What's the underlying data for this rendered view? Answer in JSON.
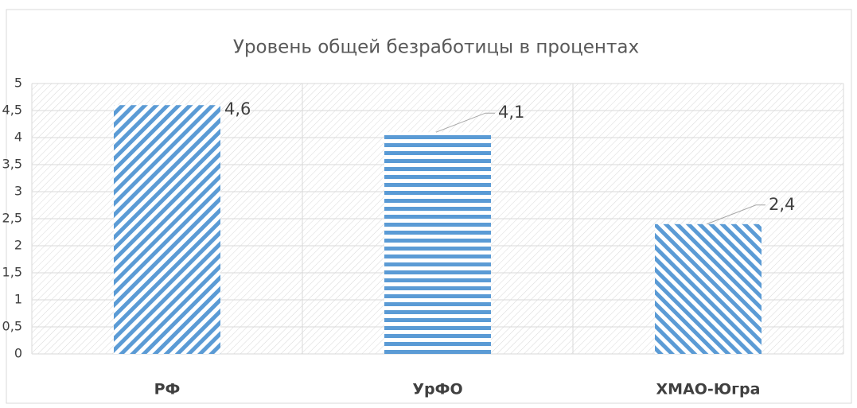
{
  "chart_data": {
    "type": "bar",
    "title": "Уровень общей безработицы   в процентах",
    "categories": [
      "РФ",
      "УрФО",
      "ХМАО-Югра"
    ],
    "values": [
      4.6,
      4.1,
      2.4
    ],
    "value_labels": [
      "4,6",
      "4,1",
      "2,4"
    ],
    "color": "#5b9bd5",
    "patterns": [
      "diagonal-up",
      "horizontal",
      "diagonal-down"
    ],
    "ylim": [
      0,
      5
    ],
    "yticks": [
      0,
      {
        "value": 0.5,
        "label": "0,5"
      },
      1,
      {
        "value": 1.5,
        "label": "1,5"
      },
      2,
      {
        "value": 2.5,
        "label": "2,5"
      },
      3,
      {
        "value": 3.5,
        "label": "3,5"
      },
      4,
      {
        "value": 4.5,
        "label": "4,5"
      },
      5
    ],
    "grid": true
  }
}
